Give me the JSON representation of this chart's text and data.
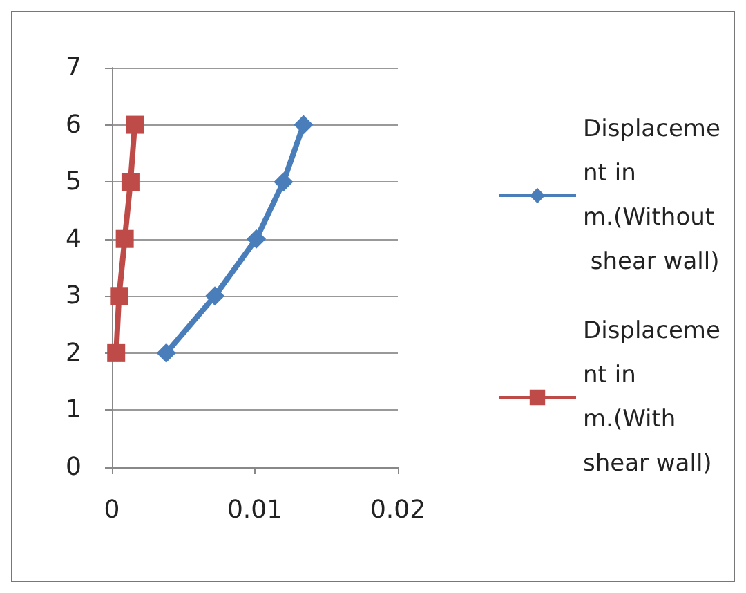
{
  "chart_data": {
    "type": "line",
    "xlim": [
      0,
      0.02
    ],
    "xticks": [
      0,
      0.01,
      0.02
    ],
    "ylim": [
      0,
      7
    ],
    "yticks": [
      0,
      1,
      2,
      3,
      4,
      5,
      6,
      7
    ],
    "grid": "y",
    "legend": "right",
    "series": [
      {
        "name": "Displacement in m.(Without shear wall)",
        "color": "#4a7ebb",
        "marker": "diamond",
        "x": [
          0.0038,
          0.0072,
          0.0101,
          0.012,
          0.0134
        ],
        "values": [
          2,
          3,
          4,
          5,
          6
        ]
      },
      {
        "name": "Displacement in m.(With shear wall)",
        "color": "#be4b48",
        "marker": "square",
        "x": [
          0.0003,
          0.0005,
          0.0009,
          0.0013,
          0.0016
        ],
        "values": [
          2,
          3,
          4,
          5,
          6
        ]
      }
    ]
  }
}
